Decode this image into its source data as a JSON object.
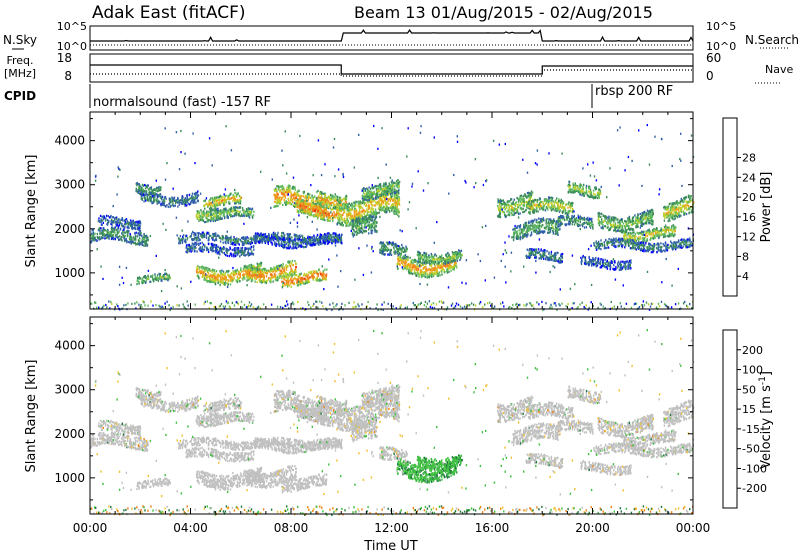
{
  "header": {
    "station": "Adak East (fitACF)",
    "beam_date": "Beam 13 01/Aug/2015 - 02/Aug/2015"
  },
  "noise_panel": {
    "left_label": "N.Sky",
    "right_label": "N.Search",
    "left_ticks": [
      "10^5",
      "10^0"
    ],
    "right_ticks": [
      "10^5",
      "10^0"
    ]
  },
  "freq_panel": {
    "left_label_1": "Freq.",
    "left_label_2": "[MHz]",
    "right_label": "Nave",
    "left_ticks": [
      "18",
      "8"
    ],
    "right_ticks": [
      "60",
      "0"
    ]
  },
  "cpid_panel": {
    "label": "CPID",
    "mode_1": "normalsound (fast) -157 RF",
    "mode_2": "rbsp 200 RF"
  },
  "colors": {
    "power": [
      "#0000ff",
      "#2e5fa8",
      "#3a8a58",
      "#5cb85c",
      "#bfcf2a",
      "#f0a018",
      "#f07820",
      "#f04010",
      "#e00000"
    ],
    "velocity": [
      "#1030c0",
      "#2050a0",
      "#207840",
      "#40c040",
      "#c0c0c0",
      "#f0c030",
      "#f08010",
      "#f04010",
      "#e00000"
    ]
  },
  "chart_data": [
    {
      "type": "heatmap",
      "title": "Power",
      "ylabel": "Slant Range [km]",
      "ylim": [
        180,
        4650
      ],
      "y_ticks": [
        1000,
        2000,
        3000,
        4000
      ],
      "colorbar_label": "Power [dB]",
      "colorbar_ticks": [
        "4",
        "8",
        "12",
        "16",
        "20",
        "24",
        "28"
      ],
      "colorbar_range": [
        0,
        32
      ]
    },
    {
      "type": "heatmap",
      "title": "Velocity",
      "ylabel": "Slant Range [km]",
      "ylim": [
        180,
        4650
      ],
      "y_ticks": [
        1000,
        2000,
        3000,
        4000
      ],
      "xlabel": "Time UT",
      "x_ticks": [
        "00:00",
        "04:00",
        "08:00",
        "12:00",
        "16:00",
        "20:00",
        "00:00"
      ],
      "colorbar_label": "Velocity [m s^-1]",
      "colorbar_ticks": [
        "200",
        "100",
        "50",
        "15",
        "-15",
        "-50",
        "-100",
        "-200"
      ]
    }
  ]
}
